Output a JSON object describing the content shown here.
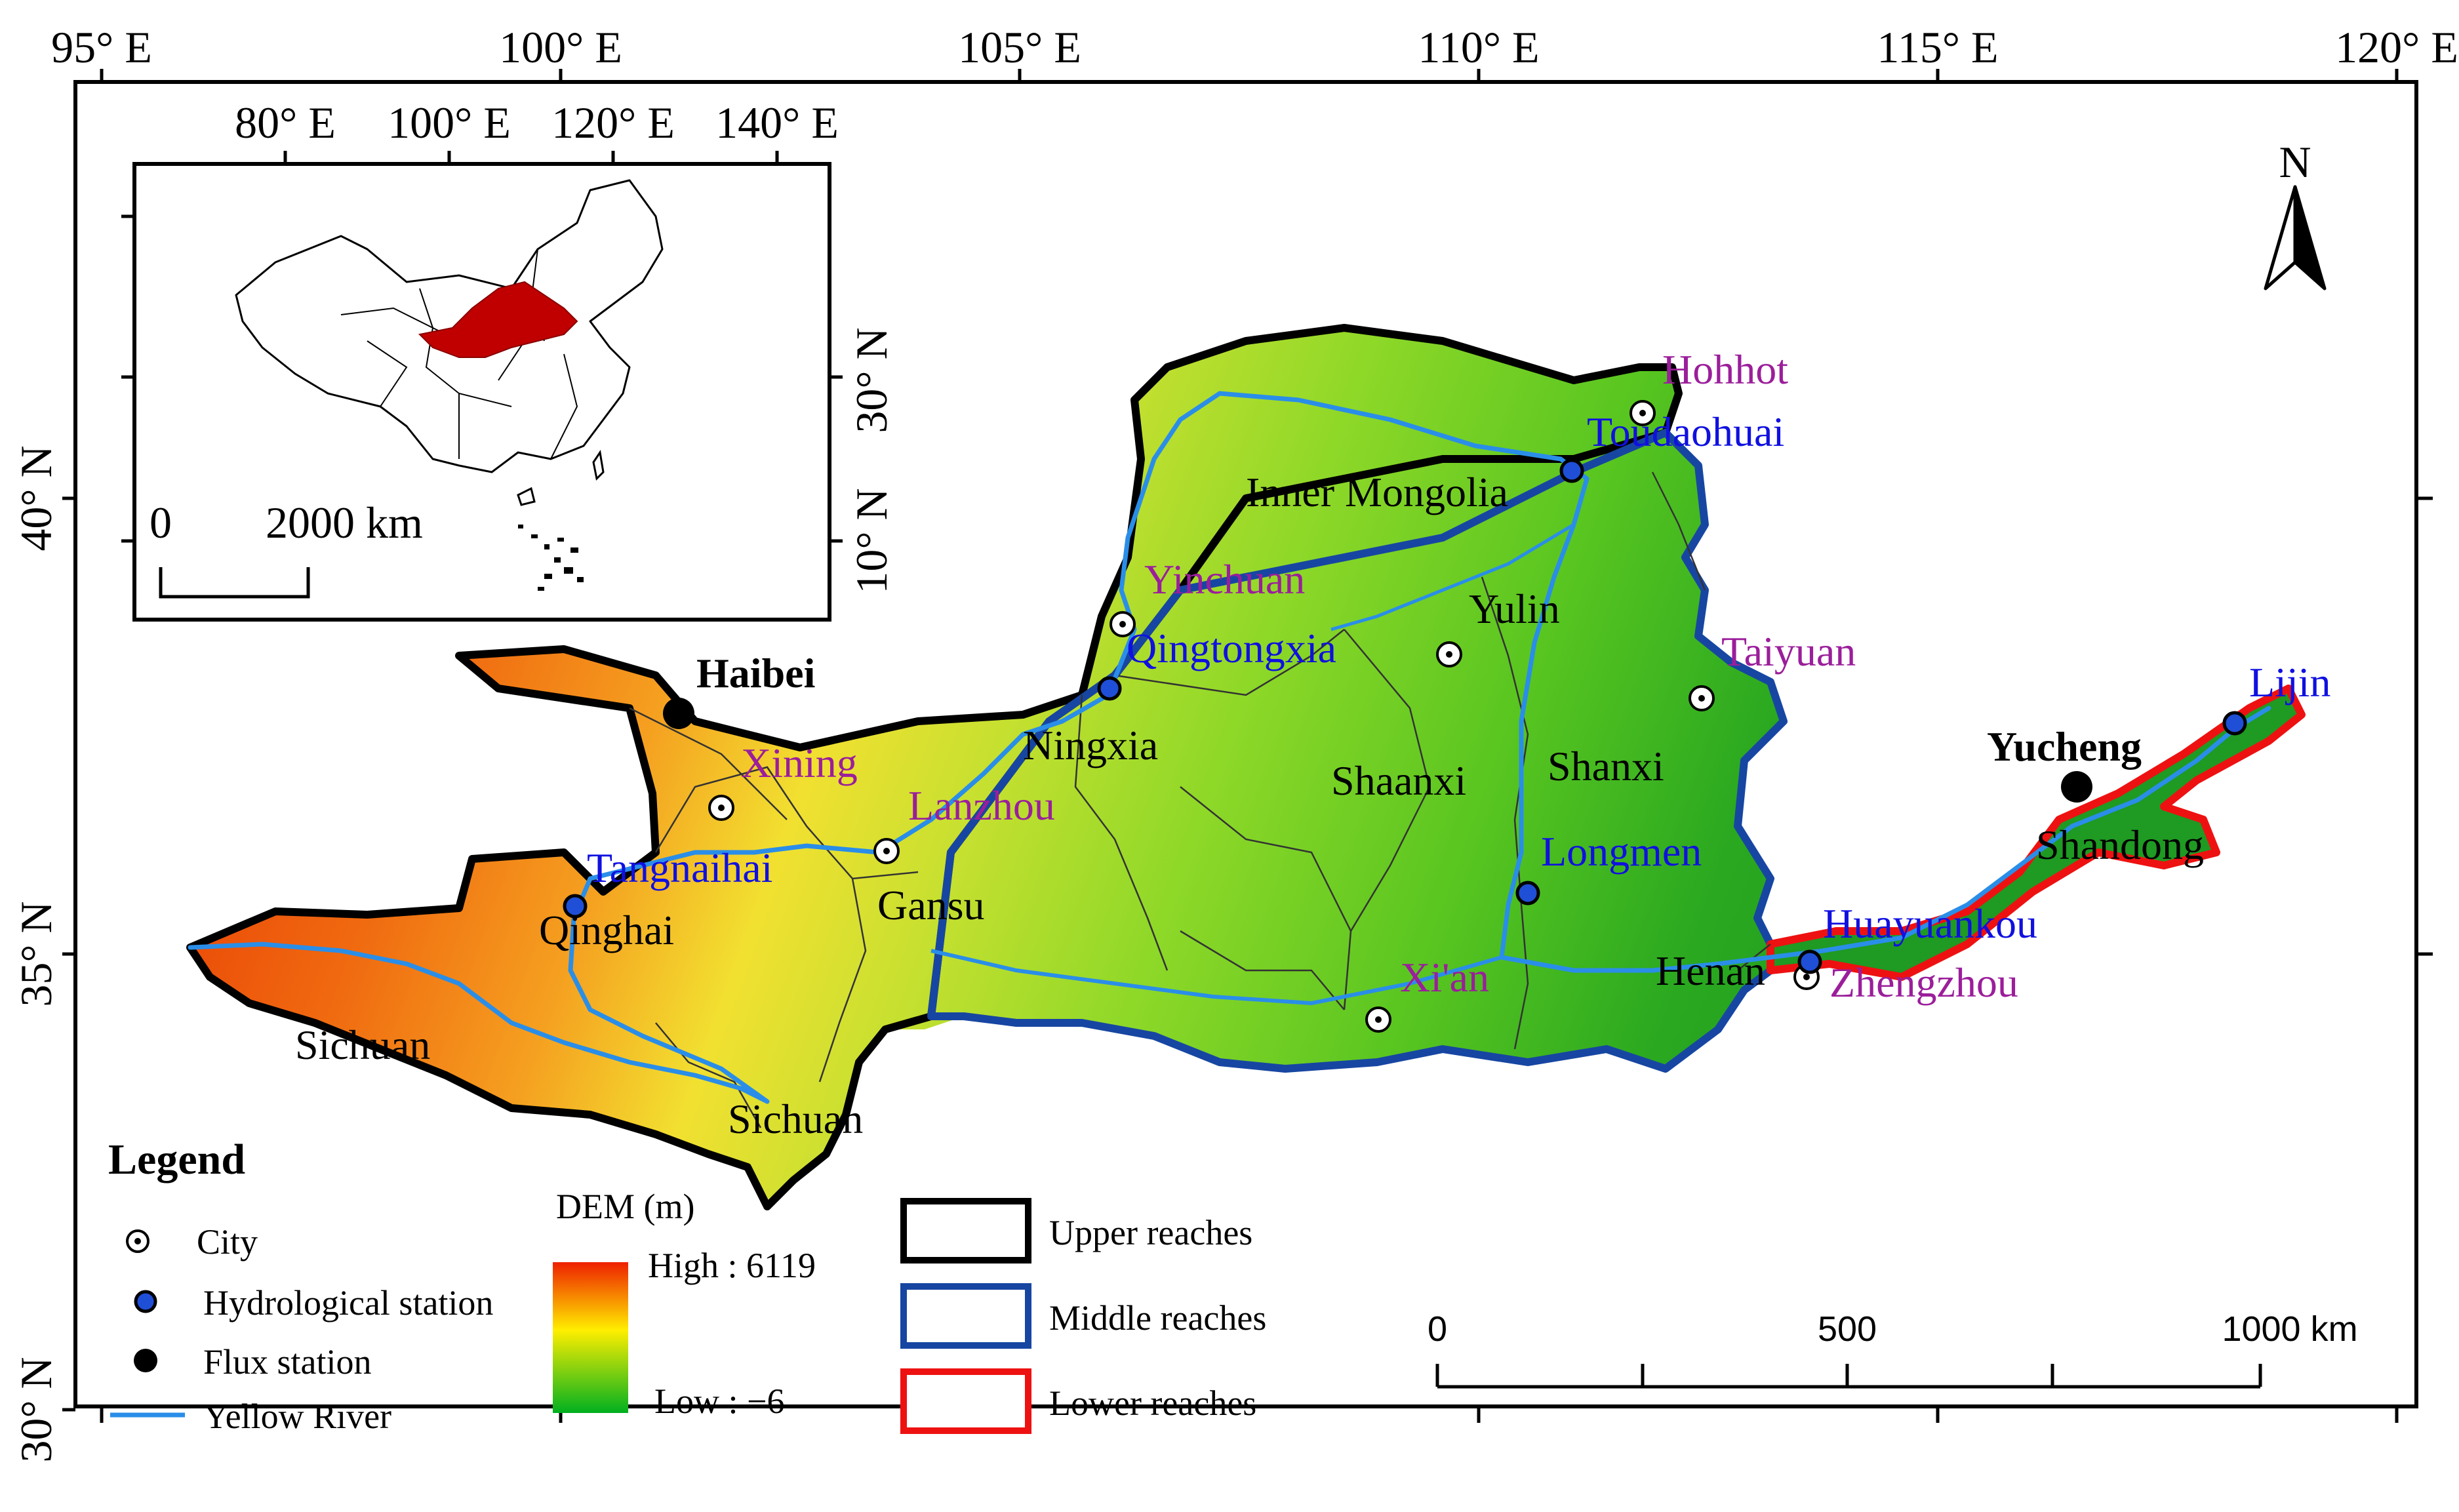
{
  "map": {
    "top_lon_labels": [
      "95° E",
      "100° E",
      "105° E",
      "110° E",
      "115° E",
      "120° E"
    ],
    "left_lat_labels": [
      "40° N",
      "35° N",
      "30° N"
    ],
    "north_arrow": "N",
    "cities": [
      {
        "name": "Hohhot",
        "icon": "city-icon"
      },
      {
        "name": "Yinchuan",
        "icon": "city-icon"
      },
      {
        "name": "Taiyuan",
        "icon": "city-icon"
      },
      {
        "name": "Xining",
        "icon": "city-icon"
      },
      {
        "name": "Lanzhou",
        "icon": "city-icon"
      },
      {
        "name": "Xi'an",
        "icon": "city-icon"
      },
      {
        "name": "Zhengzhou",
        "icon": "city-icon"
      },
      {
        "name": "Yulin",
        "icon": "city-icon"
      }
    ],
    "stations": [
      {
        "name": "Toudaohuai"
      },
      {
        "name": "Qingtongxia"
      },
      {
        "name": "Tangnaihai"
      },
      {
        "name": "Longmen"
      },
      {
        "name": "Huayuankou"
      },
      {
        "name": "Lijin"
      }
    ],
    "flux_stations": [
      {
        "name": "Haibei"
      },
      {
        "name": "Yucheng"
      }
    ],
    "provinces": [
      "Inner Mongolia",
      "Ningxia",
      "Shaanxi",
      "Shanxi",
      "Gansu",
      "Qinghai",
      "Sichuan",
      "Sichuan",
      "Henan",
      "Shandong"
    ]
  },
  "inset": {
    "top_labels": [
      "80° E",
      "100° E",
      "120° E",
      "140° E"
    ],
    "right_labels": [
      "30° N",
      "10° N"
    ],
    "scale_zero": "0",
    "scale_label": "2000 km",
    "highlight_color": "#c00000"
  },
  "legend": {
    "title": "Legend",
    "items": [
      {
        "label": "City",
        "icon": "city-icon"
      },
      {
        "label": "Hydrological station",
        "icon": "hydro-station-icon"
      },
      {
        "label": "Flux station",
        "icon": "flux-station-icon"
      },
      {
        "label": "Yellow River",
        "icon": "river-line-icon"
      }
    ],
    "dem_title": "DEM (m)",
    "dem_high": "High : 6119",
    "dem_low": "Low : −6",
    "reaches": [
      {
        "label": "Upper reaches",
        "color": "#000000"
      },
      {
        "label": "Middle reaches",
        "color": "#1746a2"
      },
      {
        "label": "Lower reaches",
        "color": "#ee1111"
      }
    ]
  },
  "scale_bar": {
    "labels": [
      "0",
      "500",
      "1000 km"
    ]
  },
  "colors": {
    "river": "#2a8ee8",
    "station": "#1f4fd6",
    "city_label": "#9b1e9b",
    "station_label": "#1010e0",
    "dem_high": "#ee2000",
    "dem_mid": "#ffee00",
    "dem_low": "#00b020"
  }
}
